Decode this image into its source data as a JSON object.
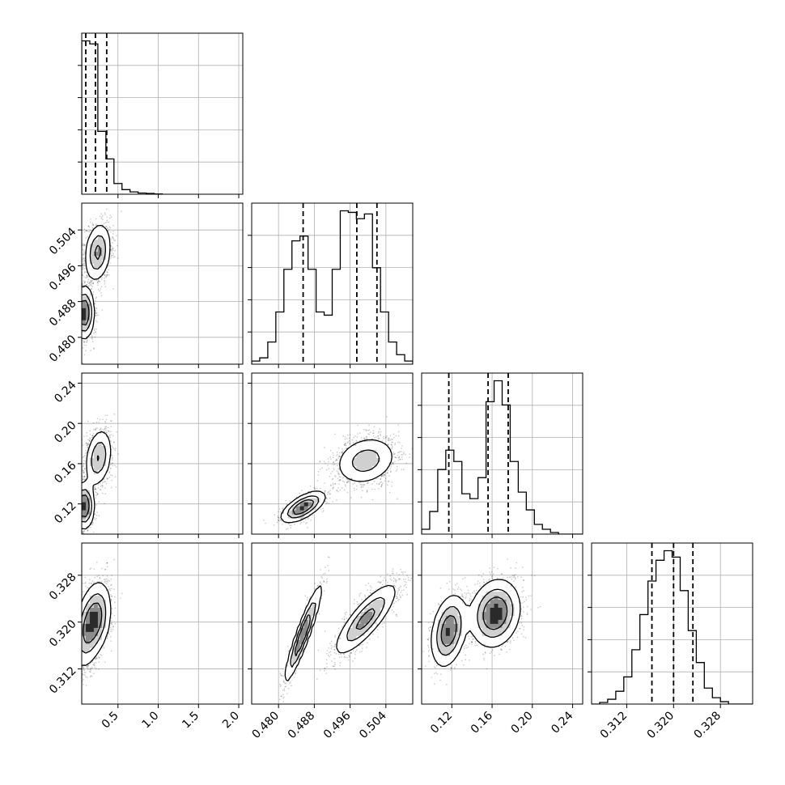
{
  "chart_data": {
    "type": "corner",
    "parameters": 4,
    "grid": true,
    "colors": {
      "hist": "#000000",
      "grid": "#b0b0b0",
      "axes": "#000000",
      "points": "#000000"
    },
    "axes": [
      {
        "index": 0,
        "range": [
          0.05,
          2.05
        ],
        "ticks": [
          0.5,
          1.0,
          1.5,
          2.0
        ],
        "tick_labels": [
          "0.5",
          "1.0",
          "1.5",
          "2.0"
        ],
        "quantiles": [
          0.1,
          0.22,
          0.36
        ]
      },
      {
        "index": 1,
        "range": [
          0.474,
          0.51
        ],
        "ticks": [
          0.48,
          0.488,
          0.496,
          0.504
        ],
        "tick_labels": [
          "0.480",
          "0.488",
          "0.496",
          "0.504"
        ],
        "quantiles": [
          0.4855,
          0.4975,
          0.502
        ]
      },
      {
        "index": 2,
        "range": [
          0.09,
          0.25
        ],
        "ticks": [
          0.12,
          0.16,
          0.2,
          0.24
        ],
        "tick_labels": [
          "0.12",
          "0.16",
          "0.20",
          "0.24"
        ],
        "quantiles": [
          0.117,
          0.156,
          0.176
        ]
      },
      {
        "index": 3,
        "range": [
          0.306,
          0.3335
        ],
        "ticks": [
          0.312,
          0.32,
          0.328
        ],
        "tick_labels": [
          "0.312",
          "0.320",
          "0.328"
        ],
        "quantiles": [
          0.3163,
          0.32,
          0.3233
        ]
      }
    ],
    "histograms": [
      {
        "param": 0,
        "bin_edges": [
          0.05,
          0.15,
          0.25,
          0.35,
          0.45,
          0.55,
          0.65,
          0.75,
          0.85,
          0.95,
          1.05
        ],
        "counts": [
          1.0,
          0.98,
          0.41,
          0.23,
          0.07,
          0.03,
          0.015,
          0.008,
          0.005,
          0.002
        ]
      },
      {
        "param": 1,
        "bin_edges": [
          0.474,
          0.4758,
          0.4776,
          0.4794,
          0.4812,
          0.483,
          0.4848,
          0.4866,
          0.4884,
          0.4902,
          0.492,
          0.4938,
          0.4956,
          0.4974,
          0.4992,
          0.501,
          0.5028,
          0.5046,
          0.5064,
          0.5082,
          0.51
        ],
        "counts": [
          0.02,
          0.04,
          0.14,
          0.33,
          0.6,
          0.78,
          0.81,
          0.6,
          0.33,
          0.31,
          0.6,
          0.97,
          0.96,
          0.92,
          0.95,
          0.61,
          0.33,
          0.14,
          0.06,
          0.02
        ]
      },
      {
        "param": 2,
        "bin_edges": [
          0.09,
          0.098,
          0.106,
          0.114,
          0.122,
          0.13,
          0.138,
          0.146,
          0.154,
          0.162,
          0.17,
          0.178,
          0.186,
          0.194,
          0.202,
          0.21,
          0.218,
          0.226,
          0.234,
          0.242,
          0.25
        ],
        "counts": [
          0.03,
          0.14,
          0.4,
          0.52,
          0.45,
          0.25,
          0.22,
          0.35,
          0.82,
          0.95,
          0.8,
          0.45,
          0.26,
          0.15,
          0.06,
          0.03,
          0.01,
          0.0,
          0.0,
          0.0
        ]
      },
      {
        "param": 3,
        "bin_edges": [
          0.306,
          0.30738,
          0.30875,
          0.31013,
          0.3115,
          0.31288,
          0.31425,
          0.31563,
          0.317,
          0.31838,
          0.31975,
          0.32113,
          0.3225,
          0.32388,
          0.32525,
          0.32663,
          0.328,
          0.32938,
          0.33075,
          0.33213,
          0.3335
        ],
        "counts": [
          0.0,
          0.01,
          0.03,
          0.08,
          0.17,
          0.34,
          0.56,
          0.77,
          0.9,
          0.96,
          0.92,
          0.71,
          0.46,
          0.26,
          0.1,
          0.04,
          0.015,
          0.0,
          0.0,
          0.0
        ]
      }
    ],
    "pairs": [
      {
        "x": 0,
        "y": 1,
        "modes": [
          {
            "cx": 0.08,
            "cy": 0.4855,
            "sx": 0.06,
            "sy": 0.0028,
            "rho": 0.0,
            "w": 0.5
          },
          {
            "cx": 0.25,
            "cy": 0.499,
            "sx": 0.08,
            "sy": 0.0032,
            "rho": 0.2,
            "w": 0.5
          }
        ]
      },
      {
        "x": 0,
        "y": 2,
        "modes": [
          {
            "cx": 0.08,
            "cy": 0.118,
            "sx": 0.06,
            "sy": 0.011,
            "rho": 0.0,
            "w": 0.5
          },
          {
            "cx": 0.26,
            "cy": 0.166,
            "sx": 0.08,
            "sy": 0.014,
            "rho": 0.25,
            "w": 0.5
          }
        ]
      },
      {
        "x": 0,
        "y": 3,
        "modes": [
          {
            "cx": 0.12,
            "cy": 0.3185,
            "sx": 0.09,
            "sy": 0.0032,
            "rho": 0.3,
            "w": 0.5
          },
          {
            "cx": 0.24,
            "cy": 0.321,
            "sx": 0.09,
            "sy": 0.003,
            "rho": 0.2,
            "w": 0.5
          }
        ]
      },
      {
        "x": 1,
        "y": 2,
        "modes": [
          {
            "cx": 0.4855,
            "cy": 0.117,
            "sx": 0.0024,
            "sy": 0.0075,
            "rho": 0.65,
            "w": 0.4
          },
          {
            "cx": 0.4995,
            "cy": 0.163,
            "sx": 0.0034,
            "sy": 0.012,
            "rho": 0.2,
            "w": 0.6
          }
        ]
      },
      {
        "x": 1,
        "y": 3,
        "modes": [
          {
            "cx": 0.4855,
            "cy": 0.318,
            "sx": 0.002,
            "sy": 0.004,
            "rho": 0.93,
            "w": 0.4
          },
          {
            "cx": 0.4995,
            "cy": 0.3205,
            "sx": 0.0034,
            "sy": 0.003,
            "rho": 0.82,
            "w": 0.6
          }
        ]
      },
      {
        "x": 2,
        "y": 3,
        "modes": [
          {
            "cx": 0.117,
            "cy": 0.3185,
            "sx": 0.0085,
            "sy": 0.003,
            "rho": 0.3,
            "w": 0.4
          },
          {
            "cx": 0.163,
            "cy": 0.3215,
            "sx": 0.012,
            "sy": 0.0028,
            "rho": 0.15,
            "w": 0.6
          }
        ]
      }
    ]
  }
}
